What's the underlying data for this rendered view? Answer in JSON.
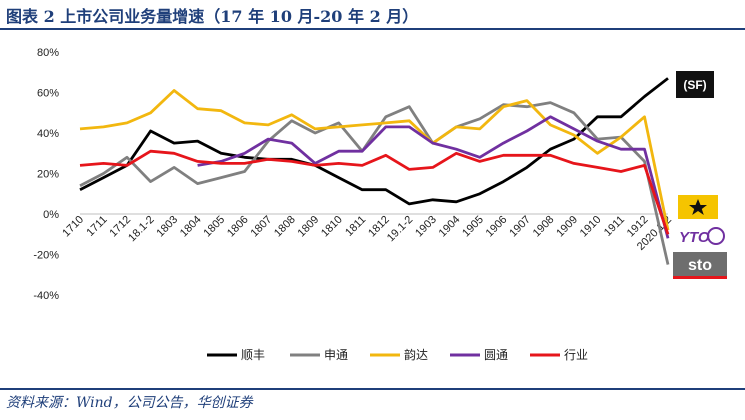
{
  "header": {
    "title": "图表 2 上市公司业务量增速（17 年 10 月-20 年 2 月）"
  },
  "footer": {
    "source": "资料来源：Wind，公司公告，华创证券"
  },
  "colors": {
    "brand": "#1f3f7a"
  },
  "logos": [
    {
      "name": "sf-express-logo",
      "text": "(SF)"
    },
    {
      "name": "yunda-logo",
      "text": ""
    },
    {
      "name": "yto-logo",
      "text": "YTO"
    },
    {
      "name": "sto-logo",
      "text": "sto"
    }
  ],
  "chart_data": {
    "type": "line",
    "title": "",
    "xlabel": "",
    "ylabel": "",
    "ylim": [
      -40,
      80
    ],
    "yticks": [
      "80%",
      "60%",
      "40%",
      "20%",
      "0%",
      "-20%",
      "-40%"
    ],
    "ytick_values": [
      80,
      60,
      40,
      20,
      0,
      -20,
      -40
    ],
    "grid": false,
    "legend_position": "bottom",
    "categories": [
      "1710",
      "1711",
      "1712",
      "18.1-2",
      "1803",
      "1804",
      "1805",
      "1806",
      "1807",
      "1808",
      "1809",
      "1810",
      "1811",
      "1812",
      "19.1-2",
      "1903",
      "1904",
      "1905",
      "1906",
      "1907",
      "1908",
      "1909",
      "1910",
      "1911",
      "1912",
      "2020.1-2"
    ],
    "series": [
      {
        "name": "顺丰",
        "color": "#000000",
        "values": [
          12,
          18,
          24,
          41,
          35,
          36,
          30,
          28,
          27,
          27,
          24,
          18,
          12,
          12,
          5,
          7,
          6,
          10,
          16,
          23,
          32,
          37,
          48,
          48,
          58,
          67
        ]
      },
      {
        "name": "申通",
        "color": "#808080",
        "values": [
          14,
          20,
          28,
          16,
          23,
          15,
          18,
          21,
          36,
          46,
          40,
          45,
          31,
          48,
          53,
          35,
          43,
          47,
          54,
          53,
          55,
          50,
          37,
          38,
          26,
          -25
        ]
      },
      {
        "name": "韵达",
        "color": "#f2b70f",
        "values": [
          42,
          43,
          45,
          50,
          61,
          52,
          51,
          45,
          44,
          49,
          42,
          43,
          44,
          45,
          46,
          35,
          43,
          42,
          53,
          56,
          44,
          39,
          30,
          38,
          48,
          -8
        ]
      },
      {
        "name": "圆通",
        "color": "#7030a0",
        "values": [
          null,
          null,
          null,
          null,
          null,
          24,
          26,
          30,
          37,
          35,
          25,
          31,
          31,
          43,
          43,
          35,
          32,
          28,
          35,
          41,
          48,
          42,
          36,
          32,
          32,
          -12
        ]
      },
      {
        "name": "行业",
        "color": "#e6151b",
        "values": [
          24,
          25,
          24,
          31,
          30,
          26,
          25,
          25,
          27,
          26,
          24,
          25,
          24,
          29,
          22,
          23,
          30,
          26,
          29,
          29,
          29,
          25,
          23,
          21,
          24,
          -10
        ]
      }
    ]
  }
}
